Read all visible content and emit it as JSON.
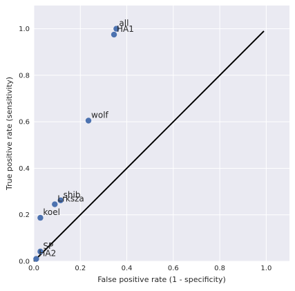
{
  "chart_data": {
    "type": "scatter",
    "xlabel": "False positive rate (1 - specificity)",
    "ylabel": "True positive rate (sensitivity)",
    "xlim": [
      0.0,
      1.1
    ],
    "ylim": [
      0.0,
      1.1
    ],
    "x_ticks": [
      "0.0",
      "0.2",
      "0.4",
      "0.6",
      "0.8",
      "1.0"
    ],
    "y_ticks": [
      "0.0",
      "0.2",
      "0.4",
      "0.6",
      "0.8",
      "1.0"
    ],
    "grid": true,
    "background_color": "#EAEAF2",
    "grid_color": "#FFFFFF",
    "point_color": "#4C72B0",
    "line_color": "#000000",
    "points": [
      {
        "label": "all",
        "x": 0.355,
        "y": 1.0
      },
      {
        "label": "HA1",
        "x": 0.345,
        "y": 0.975
      },
      {
        "label": "wolf",
        "x": 0.235,
        "y": 0.605
      },
      {
        "label": "shib",
        "x": 0.115,
        "y": 0.262
      },
      {
        "label": "Lrksza",
        "x": 0.09,
        "y": 0.245
      },
      {
        "label": "koel",
        "x": 0.028,
        "y": 0.187
      },
      {
        "label": "SP",
        "x": 0.028,
        "y": 0.042
      },
      {
        "label": "HA2",
        "x": 0.01,
        "y": 0.01
      }
    ],
    "reference_line": {
      "x": [
        0.0,
        0.99
      ],
      "y": [
        0.0,
        0.99
      ]
    }
  }
}
